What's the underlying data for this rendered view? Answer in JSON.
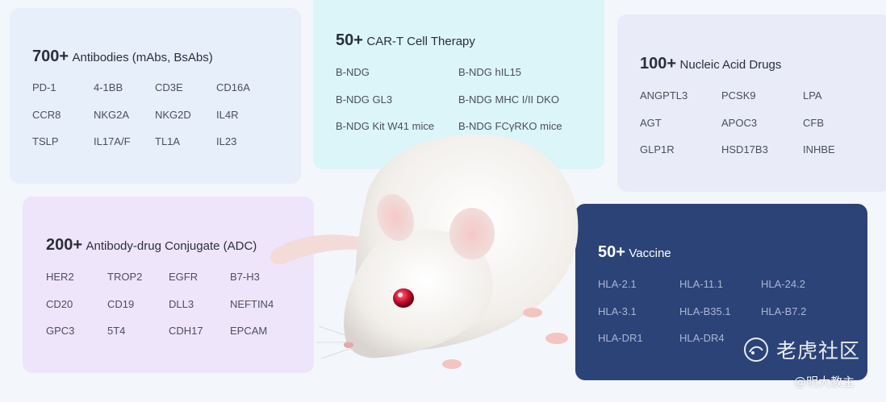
{
  "cards": {
    "antibodies": {
      "count": "700+",
      "label": "Antibodies (mAbs, BsAbs)",
      "items": [
        "PD-1",
        "4-1BB",
        "CD3E",
        "CD16A",
        "CCR8",
        "NKG2A",
        "NKG2D",
        "IL4R",
        "TSLP",
        "IL17A/F",
        "TL1A",
        "IL23"
      ]
    },
    "cart": {
      "count": "50+",
      "label": "CAR-T Cell Therapy",
      "items": [
        "B-NDG",
        "B-NDG hIL15",
        "B-NDG GL3",
        "B-NDG MHC I/II DKO",
        "B-NDG Kit W41 mice",
        "B-NDG FCγRKO mice"
      ]
    },
    "nucleic": {
      "count": "100+",
      "label": "Nucleic Acid Drugs",
      "items": [
        "ANGPTL3",
        "PCSK9",
        "LPA",
        "AGT",
        "APOC3",
        "CFB",
        "GLP1R",
        "HSD17B3",
        "INHBE"
      ]
    },
    "adc": {
      "count": "200+",
      "label": "Antibody-drug Conjugate (ADC)",
      "items": [
        "HER2",
        "TROP2",
        "EGFR",
        "B7-H3",
        "CD20",
        "CD19",
        "DLL3",
        "NEFTIN4",
        "GPC3",
        "5T4",
        "CDH17",
        "EPCAM"
      ]
    },
    "vaccine": {
      "count": "50+",
      "label": "Vaccine",
      "items": [
        "HLA-2.1",
        "HLA-11.1",
        "HLA-24.2",
        "HLA-3.1",
        "HLA-B35.1",
        "HLA-B7.2",
        "HLA-DR1",
        "HLA-DR4"
      ]
    }
  },
  "watermark": {
    "logo_text": "老虎社区",
    "author": "@明大教主"
  },
  "colors": {
    "page_bg": "#f3f6fb",
    "antibodies_bg": "#e7effa",
    "cart_bg": "#dcf5f8",
    "nucleic_bg": "#e9ebf9",
    "adc_bg": "#efe5fb",
    "vaccine_bg": "#2b4377"
  }
}
